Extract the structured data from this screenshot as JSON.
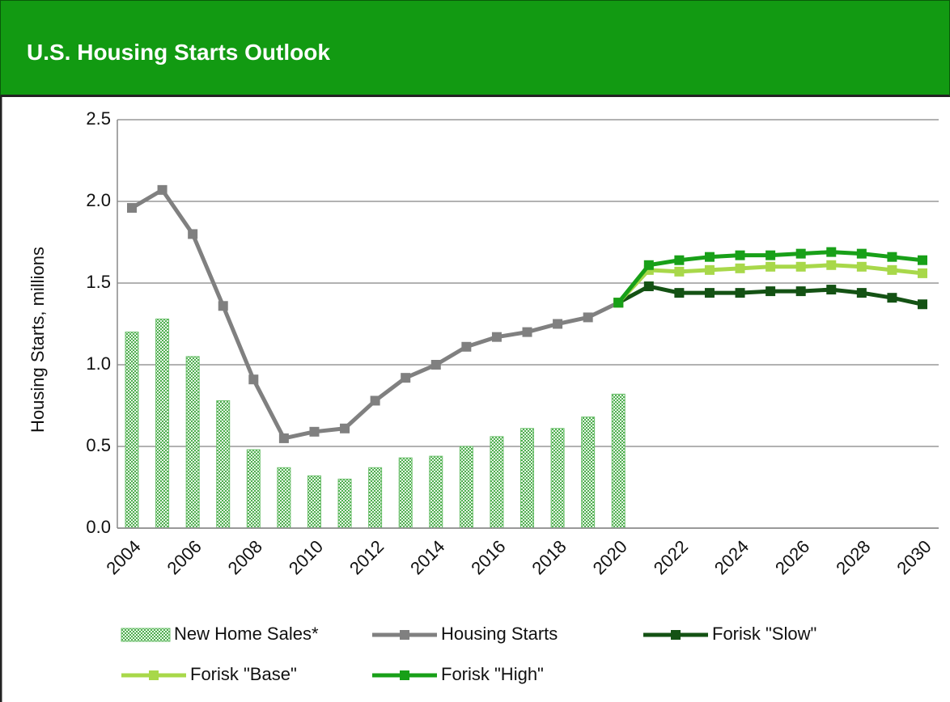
{
  "chart_data": {
    "type": "bar",
    "title": "U.S. Housing Starts Outlook",
    "ylabel": "Housing Starts, millions",
    "categories": [
      "2004",
      null,
      "2006",
      null,
      "2008",
      null,
      "2010",
      null,
      "2012",
      null,
      "2014",
      null,
      "2016",
      null,
      "2018",
      null,
      "2020",
      null,
      "2022",
      null,
      "2024",
      null,
      "2026",
      null,
      "2028",
      null,
      "2030"
    ],
    "ylim": [
      0,
      2.5
    ],
    "yticks": [
      {
        "value": 0,
        "label": "0.0"
      },
      0.5,
      {
        "value": 1,
        "label": "1.0"
      },
      1.5,
      {
        "value": 2,
        "label": "2.0"
      },
      2.5
    ],
    "grid": true,
    "series": [
      {
        "name": "New Home Sales*",
        "type": "bar",
        "color": "#6cc06c",
        "values": [
          1.2,
          1.28,
          1.05,
          0.78,
          0.48,
          0.37,
          0.32,
          0.3,
          0.37,
          0.43,
          0.44,
          0.5,
          0.56,
          0.61,
          0.61,
          0.68,
          0.82,
          null,
          null,
          null,
          null,
          null,
          null,
          null,
          null,
          null,
          null
        ]
      },
      {
        "name": "Housing Starts",
        "type": "line",
        "color": "#808080",
        "values": [
          1.96,
          2.07,
          1.8,
          1.36,
          0.91,
          0.55,
          0.59,
          0.61,
          0.78,
          0.92,
          1.0,
          1.11,
          1.17,
          1.2,
          1.25,
          1.29,
          1.38,
          null,
          null,
          null,
          null,
          null,
          null,
          null,
          null,
          null,
          null
        ]
      },
      {
        "name": "Forisk \"Slow\"",
        "type": "line",
        "color": "#145214",
        "values": [
          null,
          null,
          null,
          null,
          null,
          null,
          null,
          null,
          null,
          null,
          null,
          null,
          null,
          null,
          null,
          null,
          1.38,
          1.48,
          1.44,
          1.44,
          1.44,
          1.45,
          1.45,
          1.46,
          1.44,
          1.41,
          1.37
        ]
      },
      {
        "name": "Forisk \"Base\"",
        "type": "line",
        "color": "#a8d84a",
        "values": [
          null,
          null,
          null,
          null,
          null,
          null,
          null,
          null,
          null,
          null,
          null,
          null,
          null,
          null,
          null,
          null,
          1.38,
          1.58,
          1.57,
          1.58,
          1.59,
          1.6,
          1.6,
          1.61,
          1.6,
          1.58,
          1.56
        ]
      },
      {
        "name": "Forisk \"High\"",
        "type": "line",
        "color": "#18a018",
        "values": [
          null,
          null,
          null,
          null,
          null,
          null,
          null,
          null,
          null,
          null,
          null,
          null,
          null,
          null,
          null,
          null,
          1.38,
          1.61,
          1.64,
          1.66,
          1.67,
          1.67,
          1.68,
          1.69,
          1.68,
          1.66,
          1.64
        ]
      }
    ]
  }
}
